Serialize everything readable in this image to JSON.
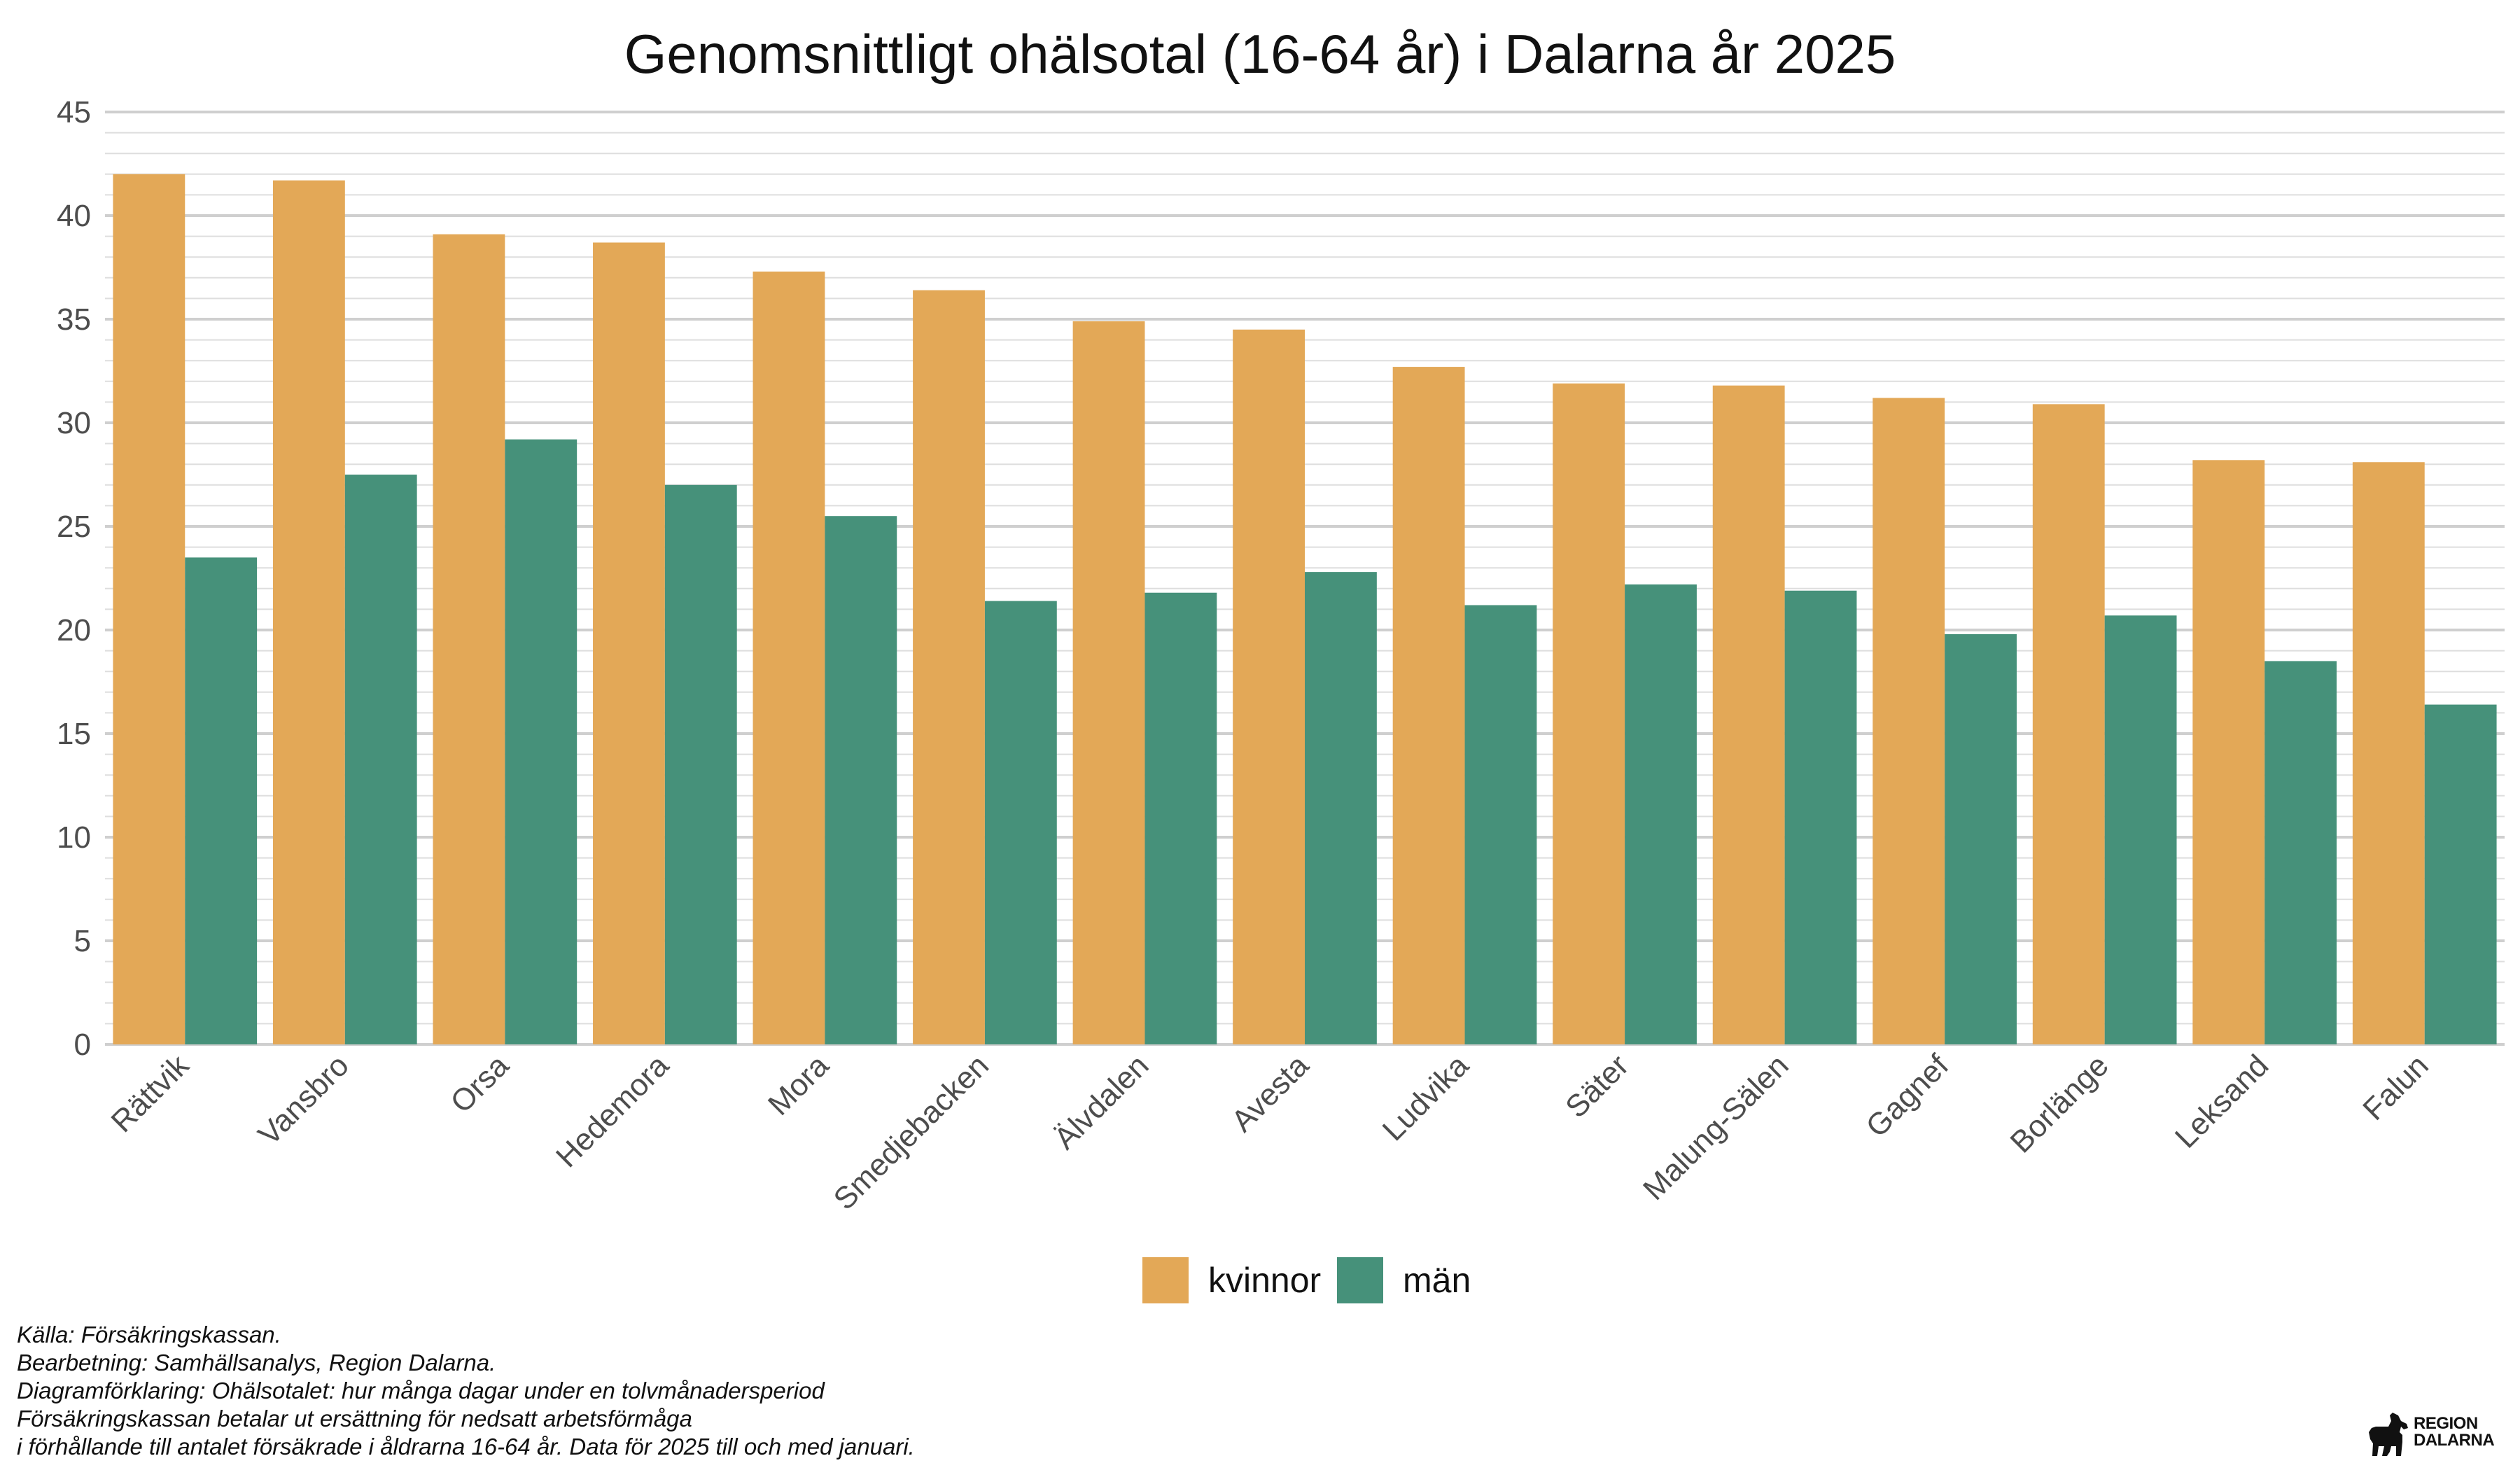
{
  "chart_data": {
    "type": "bar",
    "title": "Genomsnittligt ohälsotal (16-64 år) i Dalarna år 2025",
    "xlabel": "",
    "ylabel": "",
    "ylim": [
      0,
      45
    ],
    "yticks": [
      0,
      5,
      10,
      15,
      20,
      25,
      30,
      35,
      40,
      45
    ],
    "grid": true,
    "legend": "bottom",
    "categories": [
      "Rättvik",
      "Vansbro",
      "Orsa",
      "Hedemora",
      "Mora",
      "Smedjebacken",
      "Älvdalen",
      "Avesta",
      "Ludvika",
      "Säter",
      "Malung-Sälen",
      "Gagnef",
      "Borlänge",
      "Leksand",
      "Falun"
    ],
    "series": [
      {
        "name": "kvinnor",
        "color": "#E3A857",
        "values": [
          42.0,
          41.7,
          39.1,
          38.7,
          37.3,
          36.4,
          34.9,
          34.5,
          32.7,
          31.9,
          31.8,
          31.2,
          30.9,
          28.2,
          28.1
        ]
      },
      {
        "name": "män",
        "color": "#46917A",
        "values": [
          23.5,
          27.5,
          29.2,
          27.0,
          25.5,
          21.4,
          21.8,
          22.8,
          21.2,
          22.2,
          21.9,
          19.8,
          20.7,
          18.5,
          16.4
        ]
      }
    ]
  },
  "notes": [
    "Källa: Försäkringskassan.",
    "Bearbetning: Samhällsanalys, Region Dalarna.",
    "Diagramförklaring: Ohälsotalet: hur många dagar under en tolvmånadersperiod",
    "Försäkringskassan betalar ut ersättning för nedsatt arbetsförmåga",
    "i förhållande till antalet försäkrade i åldrarna 16-64 år. Data för 2025 till och med januari."
  ],
  "logo": {
    "line1": "REGION",
    "line2": "DALARNA",
    "icon": "dala-horse-icon"
  }
}
